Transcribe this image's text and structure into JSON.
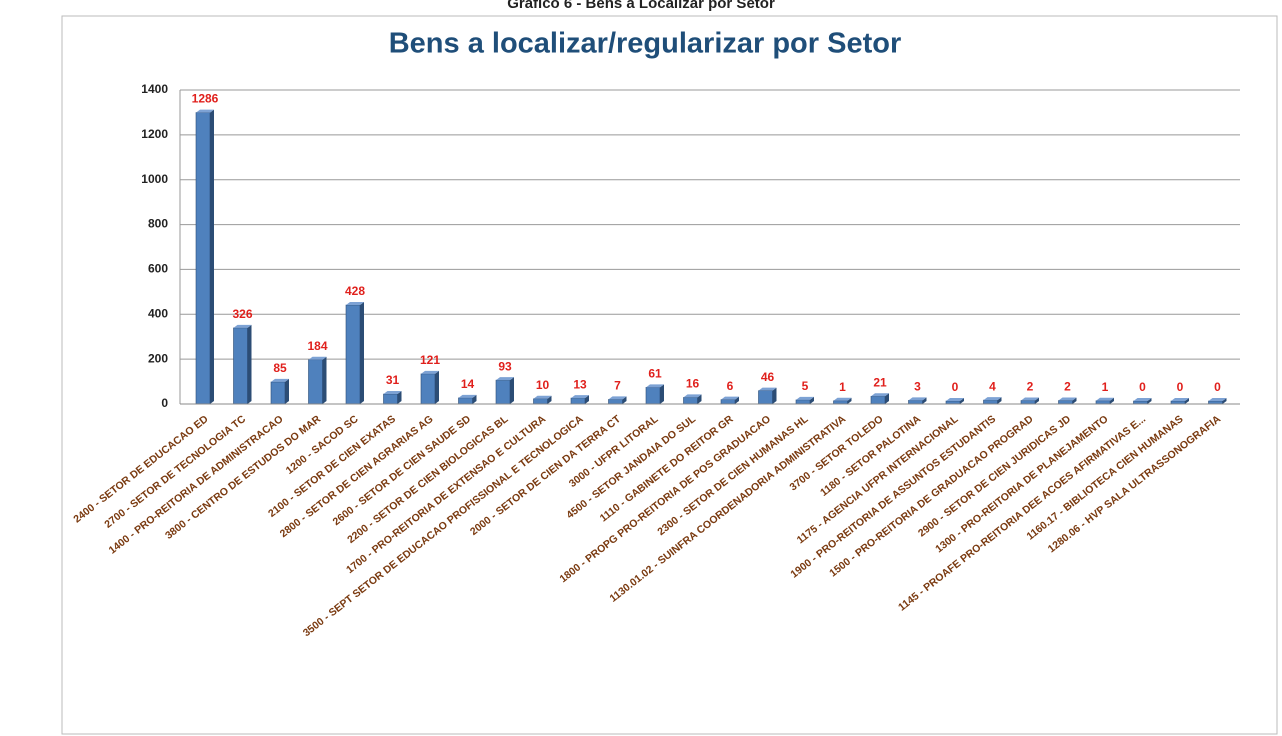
{
  "heading": "Gráfico 6 - Bens a Localizar por Setor",
  "chart_data": {
    "type": "bar",
    "title": "Bens a localizar/regularizar por Setor",
    "categories": [
      "2400 - SETOR DE EDUCACAO ED",
      "2700 - SETOR DE TECNOLOGIA TC",
      "1400 - PRO-REITORIA DE ADMINISTRACAO",
      "3800 - CENTRO DE ESTUDOS DO MAR",
      "1200 - SACOD SC",
      "2100 - SETOR DE CIEN EXATAS",
      "2800 - SETOR DE CIEN AGRARIAS AG",
      "2600 - SETOR DE CIEN SAUDE SD",
      "2200 - SETOR DE CIEN BIOLOGICAS BL",
      "1700 - PRO-REITORIA DE EXTENSAO E CULTURA",
      "3500 - SEPT SETOR DE EDUCACAO PROFISSIONAL E TECNOLOGICA",
      "2000 - SETOR DE CIEN DA TERRA CT",
      "3000 - UFPR LITORAL",
      "4500 - SETOR JANDAIA DO SUL",
      "1110 - GABINETE DO REITOR GR",
      "1800 - PROPG PRO-REITORIA DE POS GRADUACAO",
      "2300 - SETOR DE CIEN HUMANAS HL",
      "1130.01.02 - SUINFRA COORDENADORIA ADMINISTRATIVA",
      "3700 - SETOR TOLEDO",
      "1180 - SETOR PALOTINA",
      "1175 - AGENCIA UFPR INTERNACIONAL",
      "1900 - PRO-REITORIA DE ASSUNTOS ESTUDANTIS",
      "1500 - PRO-REITORIA DE GRADUACAO PROGRAD",
      "2900 - SETOR DE CIEN JURIDICAS JD",
      "1300 - PRO-REITORIA DE PLANEJAMENTO",
      "1145 - PROAFE PRO-REITORIA DEE ACOES AFIRMATIVAS E...",
      "1160.17 - BIBLIOTECA CIEN HUMANAS",
      "1280.06 - HVP SALA ULTRASSONOGRAFIA"
    ],
    "values": [
      1286,
      326,
      85,
      184,
      428,
      31,
      121,
      14,
      93,
      10,
      13,
      7,
      61,
      16,
      6,
      46,
      5,
      1,
      21,
      3,
      0,
      4,
      2,
      2,
      1,
      0,
      0,
      0
    ],
    "color": "#4f81bd",
    "ylim": [
      0,
      1400
    ],
    "yticks": [
      0,
      200,
      400,
      600,
      800,
      1000,
      1200,
      1400
    ],
    "grid": true
  }
}
